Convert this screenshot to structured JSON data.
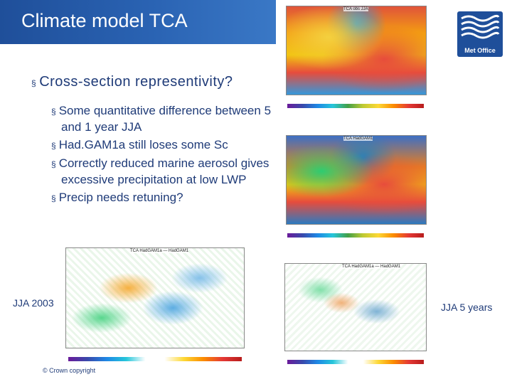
{
  "header": {
    "title": "Climate model TCA",
    "logo_text": "Met Office"
  },
  "content": {
    "main_bullet": "Cross-section representivity?",
    "sub_bullets": [
      "Some quantitative difference between 5 and 1 year JJA",
      "Had.GAM1a still loses some Sc",
      "Correctly reduced marine aerosol gives excessive precipitation at low LWP",
      "Precip needs retuning?"
    ]
  },
  "maps": {
    "top_right_title": "TCA obs JJA",
    "middle_right_title": "TCA HadGAM1",
    "bottom_left_title": "TCA HadGAM1a — HadGAM1",
    "bottom_right_title": "TCA HadGAM1a — HadGAM1",
    "bottom_left_label": "JJA 2003",
    "bottom_right_label": "JJA 5 years"
  },
  "footer": {
    "copyright": "© Crown copyright"
  },
  "colors": {
    "title_bg": "#1f4f9a",
    "text": "#1f3b78"
  }
}
